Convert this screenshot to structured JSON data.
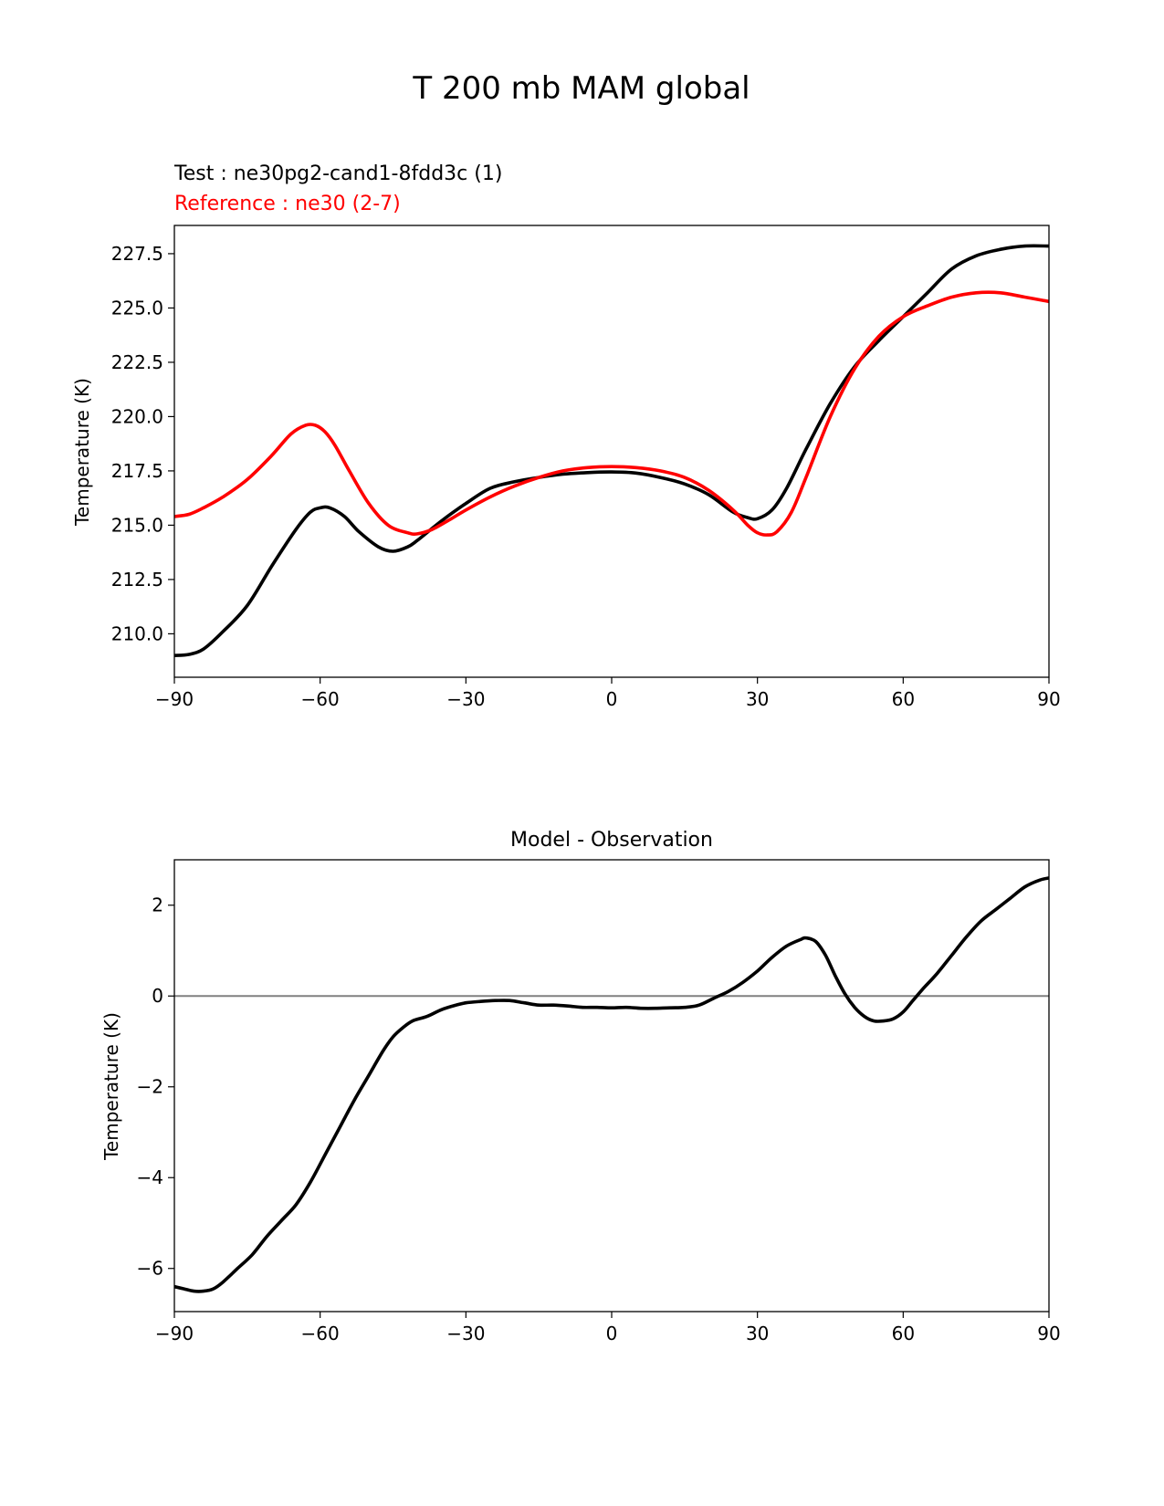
{
  "figure": {
    "title": "T 200 mb MAM global"
  },
  "chart_data": [
    {
      "type": "line",
      "test_label": "Test : ne30pg2-cand1-8fdd3c (1)",
      "reference_label": "Reference : ne30 (2-7)",
      "xlabel": "",
      "ylabel": "Temperature (K)",
      "xlim": [
        -90,
        90
      ],
      "ylim": [
        208.0,
        228.8
      ],
      "xticks": [
        -90,
        -60,
        -30,
        0,
        30,
        60,
        90
      ],
      "xtick_labels": [
        "−90",
        "−60",
        "−30",
        "0",
        "30",
        "60",
        "90"
      ],
      "yticks": [
        210.0,
        212.5,
        215.0,
        217.5,
        220.0,
        222.5,
        225.0,
        227.5
      ],
      "ytick_labels": [
        "210.0",
        "212.5",
        "215.0",
        "217.5",
        "220.0",
        "222.5",
        "225.0",
        "227.5"
      ],
      "series": [
        {
          "name": "Test : ne30pg2-cand1-8fdd3c (1)",
          "color": "#000000",
          "x": [
            -90,
            -87,
            -84,
            -80,
            -75,
            -70,
            -65,
            -62,
            -60,
            -58,
            -55,
            -52,
            -48,
            -45,
            -42,
            -40,
            -35,
            -30,
            -25,
            -20,
            -15,
            -10,
            -5,
            0,
            5,
            10,
            15,
            20,
            25,
            28,
            30,
            33,
            36,
            40,
            45,
            50,
            55,
            60,
            65,
            70,
            75,
            80,
            85,
            90
          ],
          "values": [
            209.0,
            209.05,
            209.3,
            210.1,
            211.3,
            213.1,
            214.8,
            215.6,
            215.8,
            215.8,
            215.4,
            214.7,
            214.0,
            213.8,
            214.0,
            214.3,
            215.2,
            216.0,
            216.7,
            217.0,
            217.2,
            217.35,
            217.42,
            217.45,
            217.4,
            217.2,
            216.9,
            216.4,
            215.6,
            215.35,
            215.3,
            215.7,
            216.7,
            218.5,
            220.6,
            222.3,
            223.5,
            224.6,
            225.7,
            226.8,
            227.4,
            227.7,
            227.85,
            227.85
          ]
        },
        {
          "name": "Reference : ne30 (2-7)",
          "color": "#ff0000",
          "x": [
            -90,
            -87,
            -84,
            -80,
            -75,
            -70,
            -66,
            -63,
            -61,
            -59,
            -57,
            -54,
            -50,
            -46,
            -42,
            -40,
            -37,
            -33,
            -30,
            -25,
            -20,
            -15,
            -10,
            -5,
            0,
            5,
            10,
            15,
            20,
            25,
            28,
            30,
            32,
            34,
            37,
            40,
            45,
            50,
            55,
            60,
            65,
            70,
            75,
            80,
            85,
            90
          ],
          "values": [
            215.4,
            215.5,
            215.8,
            216.3,
            217.1,
            218.2,
            219.2,
            219.6,
            219.6,
            219.3,
            218.7,
            217.5,
            216.0,
            215.0,
            214.65,
            214.6,
            214.8,
            215.3,
            215.7,
            216.3,
            216.8,
            217.2,
            217.5,
            217.65,
            217.7,
            217.65,
            217.5,
            217.2,
            216.6,
            215.7,
            215.0,
            214.65,
            214.55,
            214.7,
            215.6,
            217.2,
            220.0,
            222.2,
            223.7,
            224.6,
            225.1,
            225.5,
            225.7,
            225.7,
            225.5,
            225.3
          ]
        }
      ]
    },
    {
      "type": "line",
      "title": "Model - Observation",
      "xlabel": "",
      "ylabel": "Temperature (K)",
      "xlim": [
        -90,
        90
      ],
      "ylim": [
        -6.95,
        3.0
      ],
      "xticks": [
        -90,
        -60,
        -30,
        0,
        30,
        60,
        90
      ],
      "xtick_labels": [
        "−90",
        "−60",
        "−30",
        "0",
        "30",
        "60",
        "90"
      ],
      "yticks": [
        -6,
        -4,
        -2,
        0,
        2
      ],
      "ytick_labels": [
        "−6",
        "−4",
        "−2",
        "0",
        "2"
      ],
      "zero_line": {
        "value": 0,
        "color": "#808080"
      },
      "series": [
        {
          "name": "Model - Observation",
          "color": "#000000",
          "x": [
            -90,
            -88,
            -86,
            -84,
            -82,
            -80,
            -77,
            -74,
            -71,
            -68,
            -65,
            -62,
            -59,
            -56,
            -53,
            -50,
            -47,
            -45,
            -43,
            -41,
            -38,
            -35,
            -32,
            -30,
            -27,
            -24,
            -21,
            -18,
            -15,
            -12,
            -9,
            -6,
            -3,
            0,
            3,
            6,
            9,
            12,
            15,
            18,
            21,
            24,
            27,
            30,
            33,
            36,
            39,
            40,
            42,
            44,
            46,
            48,
            50,
            52,
            54,
            56,
            58,
            60,
            62,
            64,
            67,
            70,
            73,
            76,
            79,
            82,
            85,
            88,
            90
          ],
          "values": [
            -6.4,
            -6.45,
            -6.5,
            -6.5,
            -6.45,
            -6.3,
            -6.0,
            -5.7,
            -5.3,
            -4.95,
            -4.6,
            -4.1,
            -3.5,
            -2.9,
            -2.3,
            -1.75,
            -1.2,
            -0.9,
            -0.7,
            -0.55,
            -0.45,
            -0.3,
            -0.2,
            -0.15,
            -0.12,
            -0.1,
            -0.1,
            -0.15,
            -0.2,
            -0.2,
            -0.22,
            -0.25,
            -0.25,
            -0.26,
            -0.25,
            -0.27,
            -0.27,
            -0.26,
            -0.25,
            -0.2,
            -0.05,
            0.1,
            0.3,
            0.55,
            0.85,
            1.1,
            1.25,
            1.28,
            1.2,
            0.9,
            0.45,
            0.05,
            -0.25,
            -0.45,
            -0.55,
            -0.55,
            -0.5,
            -0.35,
            -0.1,
            0.15,
            0.5,
            0.9,
            1.3,
            1.65,
            1.9,
            2.15,
            2.4,
            2.55,
            2.6
          ]
        }
      ]
    }
  ]
}
